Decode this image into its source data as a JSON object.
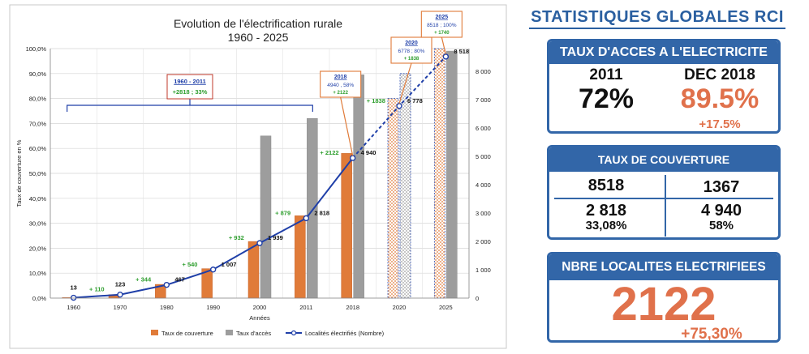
{
  "chart_data": {
    "type": "bar",
    "title": "Evolution de l'électrification rurale",
    "subtitle": "1960 - 2025",
    "xlabel": "Années",
    "ylabel": "Taux de couverture en %",
    "categories": [
      "1960",
      "1970",
      "1980",
      "1990",
      "2000",
      "2011",
      "2018",
      "2020",
      "2025"
    ],
    "ylim_left": [
      0,
      100
    ],
    "left_ticks": [
      "0,0%",
      "10,0%",
      "20,0%",
      "30,0%",
      "40,0%",
      "50,0%",
      "60,0%",
      "70,0%",
      "80,0%",
      "90,0%",
      "100,0%"
    ],
    "ylim_right": [
      0,
      8800
    ],
    "right_ticks": [
      "0",
      "1 000",
      "2 000",
      "3 000",
      "4 000",
      "5 000",
      "6 000",
      "7 000",
      "8 000"
    ],
    "series": [
      {
        "name": "Taux de couverture",
        "kind": "bar",
        "color": "#e07b39",
        "values": [
          0.2,
          1.4,
          5.5,
          11.8,
          22.7,
          33.0,
          58.0,
          80.0,
          100.0
        ],
        "hatched": [
          false,
          false,
          false,
          false,
          false,
          false,
          false,
          true,
          true
        ]
      },
      {
        "name": "Taux d'accès",
        "kind": "bar",
        "color": "#9d9d9d",
        "values": [
          null,
          null,
          null,
          null,
          65.0,
          72.0,
          89.5,
          90.0,
          99.0
        ],
        "hatched": [
          false,
          false,
          false,
          false,
          false,
          false,
          false,
          true,
          false
        ]
      },
      {
        "name": "Localités électrifiés (Nombre)",
        "kind": "line",
        "color": "#1f3fa8",
        "axis": "right",
        "values": [
          13,
          123,
          467,
          1007,
          1939,
          2818,
          4940,
          6778,
          8518
        ],
        "labels": [
          "13",
          "123",
          "467",
          "1 007",
          "1 939",
          "2 818",
          "4 940",
          "6 778",
          "8 518"
        ],
        "dashed_from_index": 6
      }
    ],
    "increments": [
      "+ 110",
      "+ 344",
      "+ 540",
      "+ 932",
      "+ 879",
      "+ 2122",
      "+ 1838",
      "+ 1740"
    ],
    "brace": {
      "title": "1960 - 2011",
      "detail": "+2818 ; 33%"
    },
    "callouts": [
      {
        "year": "2018",
        "line1": "4940 , 58%",
        "line2": "+ 2122"
      },
      {
        "year": "2020",
        "line1": "6778 ; 80%",
        "line2": "+ 1838"
      },
      {
        "year": "2025",
        "line1": "8518 ; 100%",
        "line2": "+ 1740"
      }
    ],
    "grid": true,
    "legend_position": "bottom"
  },
  "panel": {
    "title": "STATISTIQUES GLOBALES RCI",
    "access": {
      "header": "TAUX D'ACCES A L'ELECTRICITE",
      "year_left": "2011",
      "value_left": "72%",
      "year_right": "DEC 2018",
      "value_right": "89.5%",
      "delta": "+17.5%"
    },
    "coverage": {
      "header": "TAUX DE COUVERTURE",
      "top_left": "8518",
      "top_right": "1367",
      "bottom_left": "2 818",
      "bottom_left_pct": "33,08%",
      "bottom_right": "4 940",
      "bottom_right_pct": "58%"
    },
    "localities": {
      "header": "NBRE LOCALITES ELECTRIFIEES",
      "value": "2122",
      "pct": "+75,30%"
    }
  },
  "colors": {
    "orange": "#e07b39",
    "grey": "#9d9d9d",
    "line_blue": "#1f3fa8",
    "panel_blue": "#3266a8",
    "accent": "#e0714b",
    "increment_green": "#2e9e2e"
  }
}
